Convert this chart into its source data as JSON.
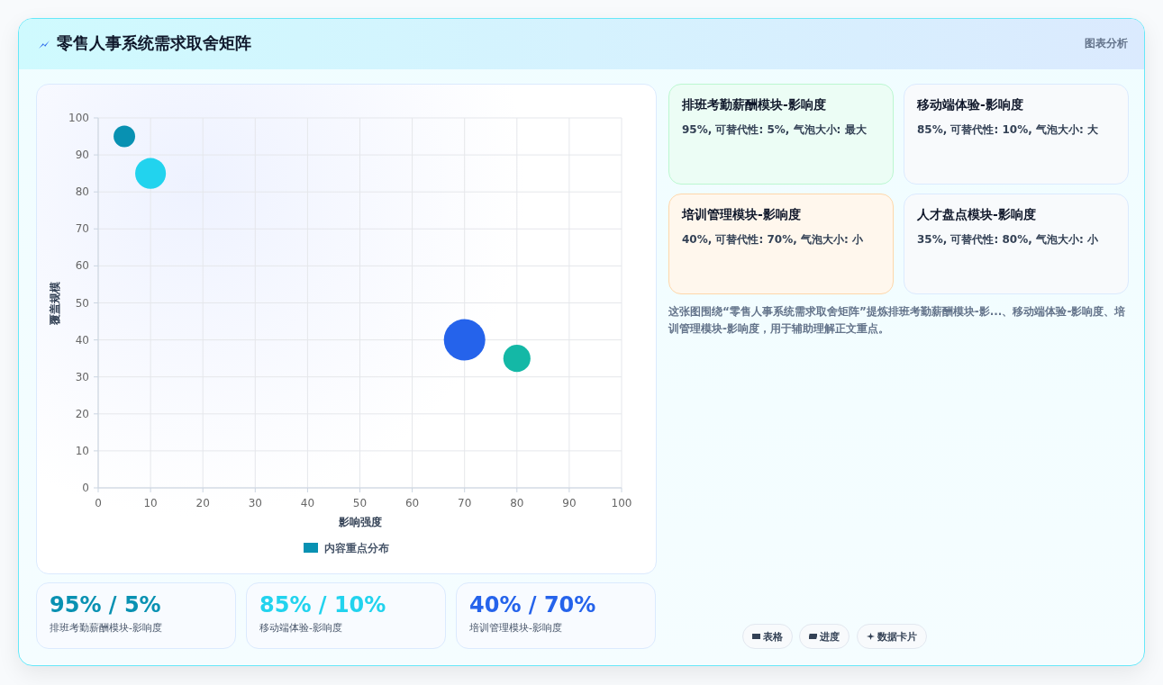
{
  "chart_data": {
    "type": "bubble",
    "title": "零售人事系统需求取舍矩阵",
    "xlabel": "影响强度",
    "ylabel": "覆盖规模",
    "series": [
      {
        "name": "内容重点分布",
        "color": "#0891b2",
        "colors": [
          "#0891b2",
          "#22d3ee",
          "#2563eb",
          "#14b8a6"
        ],
        "x": [
          5,
          10,
          70,
          80
        ],
        "values": [
          95,
          85,
          40,
          35
        ],
        "sizes": [
          0.27,
          0.55,
          1,
          0.43
        ]
      }
    ],
    "xlim": [
      0,
      100
    ],
    "xticks": [
      0,
      10,
      20,
      30,
      40,
      50,
      60,
      70,
      80,
      90,
      100
    ],
    "ylim": [
      0,
      100
    ],
    "yticks": [
      0,
      10,
      20,
      30,
      40,
      50,
      60,
      70,
      80,
      90,
      100
    ],
    "grid": true,
    "legend": "bottom",
    "annotations": [
      "图表分析",
      "排班考勤薪酬模块-影响度",
      "95%, 可替代性: 5%, 气泡大小: 最大",
      "移动端体验-影响度",
      "85%, 可替代性: 10%, 气泡大小: 大",
      "培训管理模块-影响度",
      "40%, 可替代性: 70%, 气泡大小: 小",
      "人才盘点模块-影响度",
      "35%, 可替代性: 80%, 气泡大小: 小",
      "这张图围绕“零售人事系统需求取舍矩阵”提炼排班考勤薪酬模块-影...、移动端体验-影响度、培训管理模块-影响度，用于辅助理解正文重点。",
      "95% / 5%",
      "排班考勤薪酬模块-影响度",
      "85% / 10%",
      "移动端体验-影响度",
      "40% / 70%",
      "培训管理模块-影响度",
      "表格",
      "进度",
      "数据卡片"
    ]
  }
}
